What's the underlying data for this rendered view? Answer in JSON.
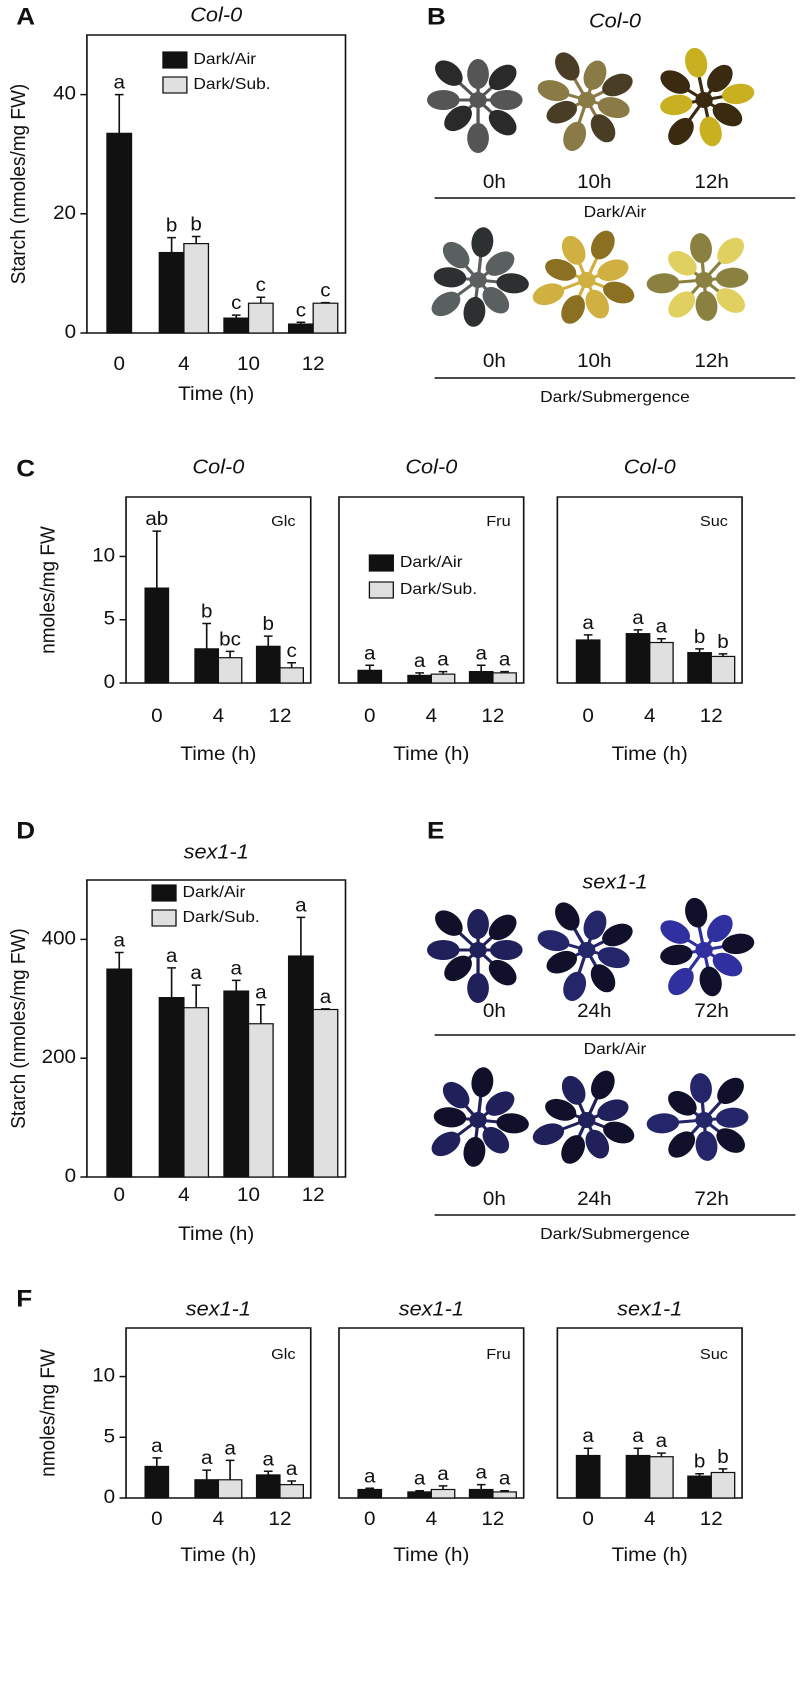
{
  "chart_data": [
    {
      "type": "bar",
      "panel": "A",
      "title": "Col-0",
      "y_label": "Starch (nmoles/mg FW)",
      "x_label": "Time (h)",
      "categories": [
        "0",
        "4",
        "10",
        "12"
      ],
      "ylim": [
        0,
        50
      ],
      "yticks": [
        0,
        20,
        40
      ],
      "legend": "upper right",
      "series": [
        {
          "name": "Dark/Air",
          "color": "#111111",
          "values": [
            33.5,
            13.5,
            2.5,
            1.5
          ],
          "errors": [
            6.5,
            2.5,
            0.5,
            0.3
          ],
          "letters": [
            "a",
            "b",
            "c",
            "c"
          ]
        },
        {
          "name": "Dark/Sub.",
          "color": "#e0e0e0",
          "values": [
            null,
            15,
            5,
            5
          ],
          "errors": [
            null,
            1.2,
            1,
            0.1
          ],
          "letters": [
            null,
            "b",
            "c",
            "c"
          ]
        }
      ]
    },
    {
      "type": "bar",
      "panel": "C",
      "title": "Col-0",
      "annotation": "Glc",
      "y_label": "nmoles/mg FW",
      "x_label": "Time (h)",
      "categories": [
        "0",
        "4",
        "12"
      ],
      "ylim": [
        0,
        14.7
      ],
      "yticks": [
        0,
        5,
        10
      ],
      "series": [
        {
          "color": "#111111",
          "values": [
            7.5,
            2.7,
            2.9
          ],
          "errors": [
            4.5,
            2,
            0.8
          ],
          "letters": [
            "ab",
            "b",
            "b"
          ]
        },
        {
          "color": "#e0e0e0",
          "values": [
            null,
            2,
            1.2
          ],
          "errors": [
            null,
            0.5,
            0.4
          ],
          "letters": [
            null,
            "bc",
            "c"
          ]
        }
      ]
    },
    {
      "type": "bar",
      "title": "Col-0",
      "annotation": "Fru",
      "x_label": "Time (h)",
      "categories": [
        "0",
        "4",
        "12"
      ],
      "ylim": [
        0,
        14.7
      ],
      "legend": "upper center",
      "series": [
        {
          "name": "Dark/Air",
          "color": "#111111",
          "values": [
            1,
            0.6,
            0.9
          ],
          "errors": [
            0.4,
            0.2,
            0.5
          ],
          "letters": [
            "a",
            "a",
            "a"
          ]
        },
        {
          "name": "Dark/Sub.",
          "color": "#e0e0e0",
          "values": [
            null,
            0.7,
            0.8
          ],
          "errors": [
            null,
            0.2,
            0.1
          ],
          "letters": [
            null,
            "a",
            "a"
          ]
        }
      ]
    },
    {
      "type": "bar",
      "title": "Col-0",
      "annotation": "Suc",
      "x_label": "Time (h)",
      "categories": [
        "0",
        "4",
        "12"
      ],
      "ylim": [
        0,
        14.7
      ],
      "series": [
        {
          "color": "#111111",
          "values": [
            3.4,
            3.9,
            2.4
          ],
          "errors": [
            0.4,
            0.3,
            0.3
          ],
          "letters": [
            "a",
            "a",
            "b"
          ]
        },
        {
          "color": "#e0e0e0",
          "values": [
            null,
            3.2,
            2.1
          ],
          "errors": [
            null,
            0.3,
            0.2
          ],
          "letters": [
            null,
            "a",
            "b"
          ]
        }
      ]
    },
    {
      "type": "bar",
      "panel": "D",
      "title": "sex1-1",
      "y_label": "Starch (nmoles/mg FW)",
      "x_label": "Time (h)",
      "categories": [
        "0",
        "4",
        "10",
        "12"
      ],
      "ylim": [
        0,
        500
      ],
      "yticks": [
        0,
        200,
        400
      ],
      "legend": "upper right",
      "series": [
        {
          "name": "Dark/Air",
          "color": "#111111",
          "values": [
            350,
            302,
            313,
            372
          ],
          "errors": [
            28,
            50,
            18,
            65
          ],
          "letters": [
            "a",
            "a",
            "a",
            "a"
          ]
        },
        {
          "name": "Dark/Sub.",
          "color": "#e0e0e0",
          "values": [
            null,
            285,
            258,
            282
          ],
          "errors": [
            null,
            38,
            32,
            1
          ],
          "letters": [
            null,
            "a",
            "a",
            "a"
          ]
        }
      ]
    },
    {
      "type": "bar",
      "panel": "F",
      "title": "sex1-1",
      "annotation": "Glc",
      "y_label": "nmoles/mg FW",
      "x_label": "Time (h)",
      "categories": [
        "0",
        "4",
        "12"
      ],
      "ylim": [
        0,
        14
      ],
      "yticks": [
        0,
        5,
        10
      ],
      "series": [
        {
          "color": "#111111",
          "values": [
            2.6,
            1.5,
            1.9
          ],
          "errors": [
            0.7,
            0.8,
            0.3
          ],
          "letters": [
            "a",
            "a",
            "a"
          ]
        },
        {
          "color": "#e0e0e0",
          "values": [
            null,
            1.5,
            1.1
          ],
          "errors": [
            null,
            1.6,
            0.3
          ],
          "letters": [
            null,
            "a",
            "a"
          ]
        }
      ]
    },
    {
      "type": "bar",
      "title": "sex1-1",
      "annotation": "Fru",
      "x_label": "Time (h)",
      "categories": [
        "0",
        "4",
        "12"
      ],
      "ylim": [
        0,
        14
      ],
      "series": [
        {
          "color": "#111111",
          "values": [
            0.7,
            0.5,
            0.7
          ],
          "errors": [
            0.1,
            0.1,
            0.4
          ],
          "letters": [
            "a",
            "a",
            "a"
          ]
        },
        {
          "color": "#e0e0e0",
          "values": [
            null,
            0.7,
            0.5
          ],
          "errors": [
            null,
            0.3,
            0.1
          ],
          "letters": [
            null,
            "a",
            "a"
          ]
        }
      ]
    },
    {
      "type": "bar",
      "title": "sex1-1",
      "annotation": "Suc",
      "x_label": "Time (h)",
      "categories": [
        "0",
        "4",
        "12"
      ],
      "ylim": [
        0,
        14
      ],
      "series": [
        {
          "color": "#111111",
          "values": [
            3.5,
            3.5,
            1.8
          ],
          "errors": [
            0.6,
            0.6,
            0.2
          ],
          "letters": [
            "a",
            "a",
            "b"
          ]
        },
        {
          "color": "#e0e0e0",
          "values": [
            null,
            3.4,
            2.1
          ],
          "errors": [
            null,
            0.3,
            0.3
          ],
          "letters": [
            null,
            "a",
            "b"
          ]
        }
      ]
    }
  ],
  "photo_panels": [
    {
      "panel": "B",
      "title": "Col-0",
      "rows": [
        {
          "times": [
            "0h",
            "10h",
            "12h"
          ],
          "label": "Dark/Air"
        },
        {
          "times": [
            "0h",
            "10h",
            "12h"
          ],
          "label": "Dark/Submergence"
        }
      ]
    },
    {
      "panel": "E",
      "title": "sex1-1",
      "rows": [
        {
          "times": [
            "0h",
            "24h",
            "72h"
          ],
          "label": "Dark/Air"
        },
        {
          "times": [
            "0h",
            "24h",
            "72h"
          ],
          "label": "Dark/Submergence"
        }
      ]
    }
  ]
}
